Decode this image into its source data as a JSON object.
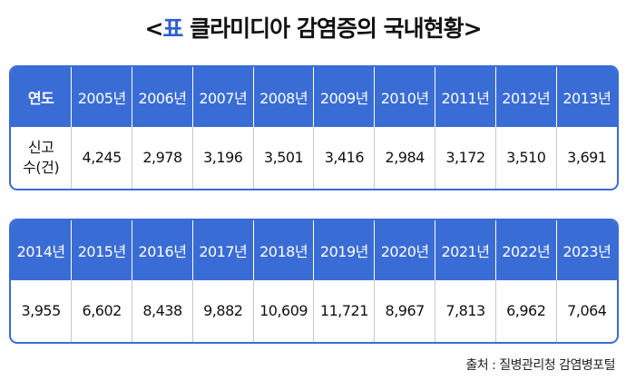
{
  "title": {
    "open": "<",
    "label": "표",
    "text": "클라미디아 감염증의 국내현황",
    "close": ">"
  },
  "tables": [
    {
      "header": [
        "연도",
        "2005년",
        "2006년",
        "2007년",
        "2008년",
        "2009년",
        "2010년",
        "2011년",
        "2012년",
        "2013년"
      ],
      "rows": [
        [
          "신고\n수(건)",
          "4,245",
          "2,978",
          "3,196",
          "3,501",
          "3,416",
          "2,984",
          "3,172",
          "3,510",
          "3,691"
        ]
      ]
    },
    {
      "header": [
        "2014년",
        "2015년",
        "2016년",
        "2017년",
        "2018년",
        "2019년",
        "2020년",
        "2021년",
        "2022년",
        "2023년"
      ],
      "rows": [
        [
          "3,955",
          "6,602",
          "8,438",
          "9,882",
          "10,609",
          "11,721",
          "8,967",
          "7,813",
          "6,962",
          "7,064"
        ]
      ]
    }
  ],
  "source": "출처 : 질병관리청 감염병포털"
}
